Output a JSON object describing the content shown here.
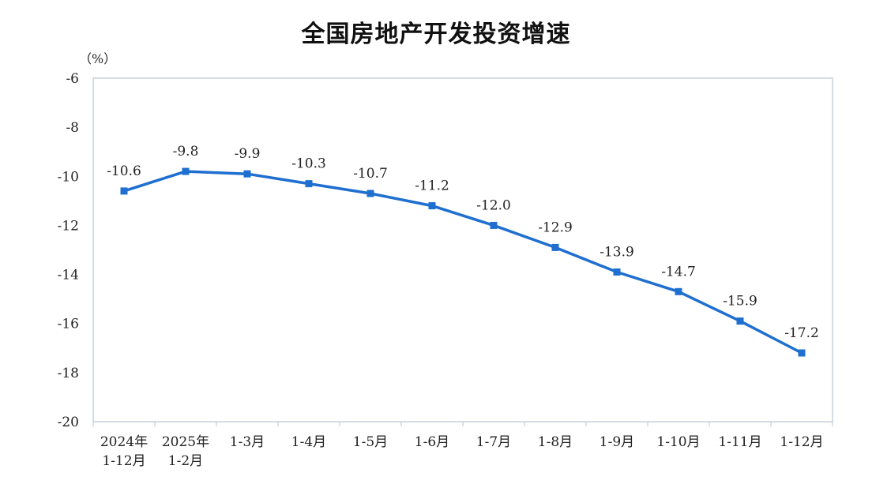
{
  "chart_data": {
    "type": "line",
    "title": "全国房地产开发投资增速",
    "ylabel": "",
    "unit": "（%）",
    "ylim": [
      -20,
      -6
    ],
    "yticks": [
      -6,
      -8,
      -10,
      -12,
      -14,
      -16,
      -18,
      -20
    ],
    "categories": [
      [
        "2024年",
        "1-12月"
      ],
      [
        "2025年",
        "1-2月"
      ],
      [
        "1-3月"
      ],
      [
        "1-4月"
      ],
      [
        "1-5月"
      ],
      [
        "1-6月"
      ],
      [
        "1-7月"
      ],
      [
        "1-8月"
      ],
      [
        "1-9月"
      ],
      [
        "1-10月"
      ],
      [
        "1-11月"
      ],
      [
        "1-12月"
      ]
    ],
    "series": [
      {
        "values": [
          -10.6,
          -9.8,
          -9.9,
          -10.3,
          -10.7,
          -11.2,
          -12.0,
          -12.9,
          -13.9,
          -14.7,
          -15.9,
          -17.2
        ],
        "labels": [
          "-10.6",
          "-9.8",
          "-9.9",
          "-10.3",
          "-10.7",
          "-11.2",
          "-12.0",
          "-12.9",
          "-13.9",
          "-14.7",
          "-15.9",
          "-17.2"
        ]
      }
    ],
    "colors": {
      "line": "#1e6fd0",
      "marker": "#1e6fd0",
      "frame": "#b9c4d0"
    },
    "grid": false,
    "legend": "none"
  }
}
